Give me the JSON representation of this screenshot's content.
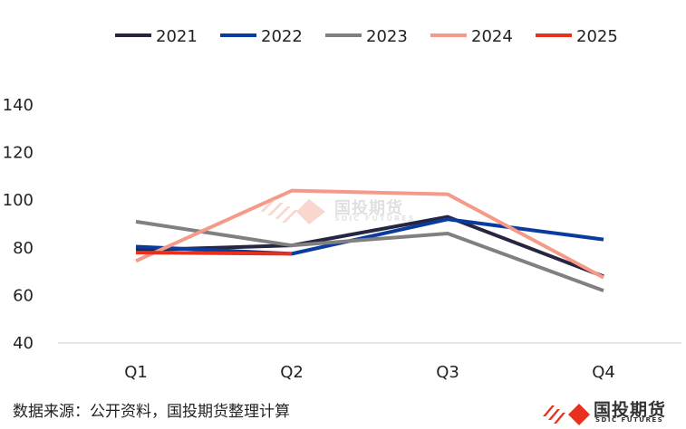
{
  "chart_data": {
    "type": "line",
    "categories": [
      "Q1",
      "Q2",
      "Q3",
      "Q4"
    ],
    "ylim": [
      40,
      140
    ],
    "yticks": [
      40,
      60,
      80,
      100,
      120,
      140
    ],
    "grid": false,
    "legend_position": "top",
    "title": "",
    "xlabel": "",
    "ylabel": "",
    "series": [
      {
        "name": "2021",
        "color": "#262640",
        "values": [
          79,
          81,
          93,
          68
        ]
      },
      {
        "name": "2022",
        "color": "#0A3CA0",
        "values": [
          80.5,
          77.5,
          92,
          83.5
        ]
      },
      {
        "name": "2023",
        "color": "#808080",
        "values": [
          91,
          81,
          86,
          62
        ]
      },
      {
        "name": "2024",
        "color": "#F59A88",
        "values": [
          74.5,
          104,
          102.5,
          67.5
        ]
      },
      {
        "name": "2025",
        "color": "#E8301C",
        "values": [
          78,
          77.5,
          null,
          null
        ]
      }
    ]
  },
  "footer": {
    "source": "数据来源：公开资料，国投期货整理计算",
    "logo_text": "国投期货",
    "logo_sub": "SDIC FUTURES"
  },
  "watermark": {
    "text": "国投期货",
    "sub": "SDIC FUTURES"
  }
}
